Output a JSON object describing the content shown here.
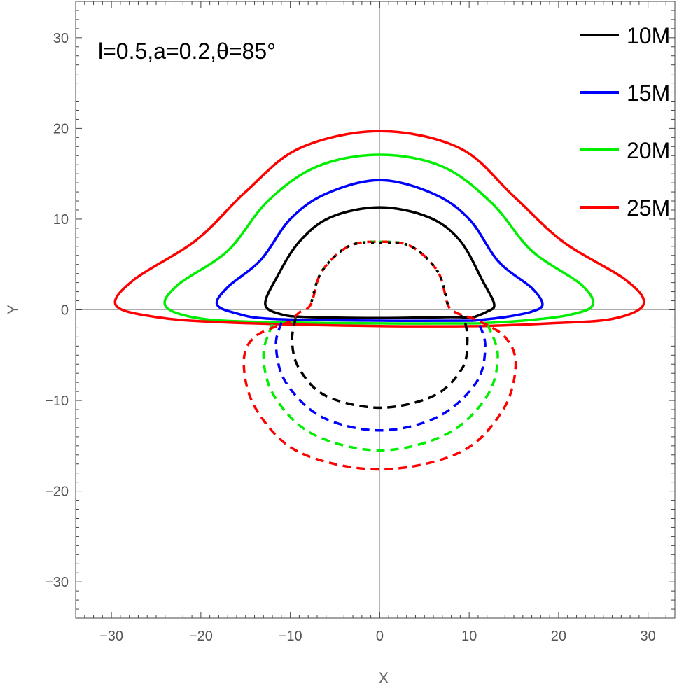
{
  "chart_data": {
    "type": "line",
    "annotation": "l=0.5,a=0.2,θ=85°",
    "xlabel": "X",
    "ylabel": "Y",
    "xlim": [
      -34,
      33
    ],
    "ylim": [
      -34,
      34
    ],
    "xticks": [
      -30,
      -20,
      -10,
      0,
      10,
      20,
      30
    ],
    "yticks": [
      -30,
      -20,
      -10,
      0,
      10,
      20,
      30
    ],
    "tick_labels_x": [
      "−30",
      "−20",
      "−10",
      "0",
      "10",
      "20",
      "30"
    ],
    "tick_labels_y": [
      "−30",
      "−20",
      "−10",
      "0",
      "10",
      "20",
      "30"
    ],
    "legend_placement": "top-right",
    "legend": [
      {
        "name": "10M",
        "color": "#000000"
      },
      {
        "name": "15M",
        "color": "#0000ff"
      },
      {
        "name": "20M",
        "color": "#00ee00"
      },
      {
        "name": "25M",
        "color": "#ff0000"
      }
    ],
    "series": [
      {
        "name": "10M",
        "color": "#000000",
        "style": "solid",
        "points": [
          [
            10.3,
            -0.9
          ],
          [
            12,
            -0.2
          ],
          [
            12.8,
            0.6
          ],
          [
            11.5,
            3.2
          ],
          [
            9,
            7.6
          ],
          [
            5.5,
            10.2
          ],
          [
            0,
            11.3
          ],
          [
            -5.5,
            10.2
          ],
          [
            -9,
            7.5
          ],
          [
            -11.5,
            3.6
          ],
          [
            -12.8,
            0.6
          ],
          [
            -11,
            -0.5
          ],
          [
            -8,
            -0.8
          ],
          [
            0,
            -0.9
          ],
          [
            8,
            -0.8
          ],
          [
            10.3,
            -0.9
          ]
        ]
      },
      {
        "name": "15M",
        "color": "#0000ff",
        "style": "solid",
        "points": [
          [
            10.5,
            -1.2
          ],
          [
            14,
            -0.8
          ],
          [
            17,
            -0.2
          ],
          [
            18.2,
            0.6
          ],
          [
            17,
            2.4
          ],
          [
            13.3,
            5.3
          ],
          [
            10,
            10
          ],
          [
            6,
            12.8
          ],
          [
            0,
            14.3
          ],
          [
            -6,
            12.8
          ],
          [
            -10,
            10
          ],
          [
            -13.3,
            5.5
          ],
          [
            -17,
            2.5
          ],
          [
            -18.2,
            0.6
          ],
          [
            -16,
            -0.4
          ],
          [
            -12,
            -1
          ],
          [
            0,
            -1.2
          ],
          [
            10.5,
            -1.2
          ]
        ]
      },
      {
        "name": "20M",
        "color": "#00ee00",
        "style": "solid",
        "points": [
          [
            11,
            -1.5
          ],
          [
            16,
            -1.2
          ],
          [
            21,
            -0.6
          ],
          [
            23.8,
            0.5
          ],
          [
            22.5,
            2.8
          ],
          [
            17,
            6.5
          ],
          [
            12.5,
            11.8
          ],
          [
            7,
            15.8
          ],
          [
            0,
            17.1
          ],
          [
            -7,
            15.8
          ],
          [
            -12.5,
            12
          ],
          [
            -17,
            6.5
          ],
          [
            -22.5,
            2.8
          ],
          [
            -24,
            0.5
          ],
          [
            -21,
            -0.8
          ],
          [
            -15,
            -1.3
          ],
          [
            0,
            -1.5
          ],
          [
            11,
            -1.5
          ]
        ]
      },
      {
        "name": "25M",
        "color": "#ff0000",
        "style": "solid",
        "points": [
          [
            11.5,
            -1.8
          ],
          [
            19,
            -1.5
          ],
          [
            26,
            -1
          ],
          [
            29.5,
            0.6
          ],
          [
            27.5,
            3.3
          ],
          [
            20.5,
            7.5
          ],
          [
            15,
            12.5
          ],
          [
            9,
            17.8
          ],
          [
            0,
            19.7
          ],
          [
            -9,
            17.8
          ],
          [
            -15,
            13
          ],
          [
            -20.5,
            7.7
          ],
          [
            -27.5,
            3.3
          ],
          [
            -29.5,
            0.5
          ],
          [
            -25,
            -0.8
          ],
          [
            -17,
            -1.4
          ],
          [
            0,
            -1.8
          ],
          [
            11.5,
            -1.8
          ]
        ]
      },
      {
        "name": "10M",
        "color": "#000000",
        "style": "dashed",
        "points": [
          [
            -9.4,
            -0.9
          ],
          [
            -9.8,
            -3.5
          ],
          [
            -9,
            -6.5
          ],
          [
            -6,
            -9.5
          ],
          [
            0,
            -10.8
          ],
          [
            6,
            -9.5
          ],
          [
            9.2,
            -6.5
          ],
          [
            9.8,
            -3.5
          ],
          [
            9.5,
            -1.2
          ],
          [
            9,
            -0.6
          ]
        ]
      },
      {
        "name": "15M",
        "color": "#0000ff",
        "style": "dashed",
        "points": [
          [
            -11,
            -1.4
          ],
          [
            -11.6,
            -4
          ],
          [
            -10.5,
            -8
          ],
          [
            -6.5,
            -11.8
          ],
          [
            0,
            -13.3
          ],
          [
            6.5,
            -11.8
          ],
          [
            10.8,
            -8
          ],
          [
            11.8,
            -4
          ],
          [
            11,
            -1.3
          ]
        ]
      },
      {
        "name": "20M",
        "color": "#00ee00",
        "style": "dashed",
        "points": [
          [
            -12,
            -1.6
          ],
          [
            -13,
            -5
          ],
          [
            -11.8,
            -9.5
          ],
          [
            -7.5,
            -13.7
          ],
          [
            0,
            -15.5
          ],
          [
            7.5,
            -13.7
          ],
          [
            12,
            -9.5
          ],
          [
            13.2,
            -5
          ],
          [
            12,
            -1.5
          ]
        ]
      },
      {
        "name": "25M",
        "color": "#ff0000",
        "style": "dashed",
        "points": [
          [
            -10,
            -1.3
          ],
          [
            -14,
            -3
          ],
          [
            -15.2,
            -6
          ],
          [
            -13.8,
            -11
          ],
          [
            -9,
            -15.7
          ],
          [
            0,
            -17.6
          ],
          [
            9,
            -15.7
          ],
          [
            13.8,
            -11
          ],
          [
            15.2,
            -6
          ],
          [
            14,
            -3
          ],
          [
            11,
            -1.2
          ],
          [
            8.5,
            -0.3
          ],
          [
            7.6,
            0.6
          ],
          [
            6.5,
            4.2
          ],
          [
            3.5,
            7
          ],
          [
            0,
            7.5
          ],
          [
            -3.5,
            7
          ],
          [
            -6.5,
            4.2
          ],
          [
            -7.7,
            0.6
          ],
          [
            -9,
            -0.3
          ],
          [
            -10,
            -1.3
          ]
        ]
      },
      {
        "name": "20M",
        "color": "#00ee00",
        "style": "dotted",
        "points": [
          [
            7.6,
            0.6
          ],
          [
            6.5,
            4.2
          ],
          [
            3.5,
            7
          ],
          [
            0,
            7.5
          ],
          [
            -3.5,
            7
          ],
          [
            -6.5,
            4.2
          ],
          [
            -7.7,
            0.6
          ]
        ]
      },
      {
        "name": "10M",
        "color": "#000000",
        "style": "dotted",
        "points": [
          [
            7.6,
            0.6
          ],
          [
            6.5,
            4.2
          ],
          [
            3.5,
            7
          ],
          [
            0,
            7.4
          ],
          [
            -3.5,
            7
          ],
          [
            -6.5,
            4.2
          ],
          [
            -7.7,
            0.6
          ]
        ]
      }
    ]
  }
}
